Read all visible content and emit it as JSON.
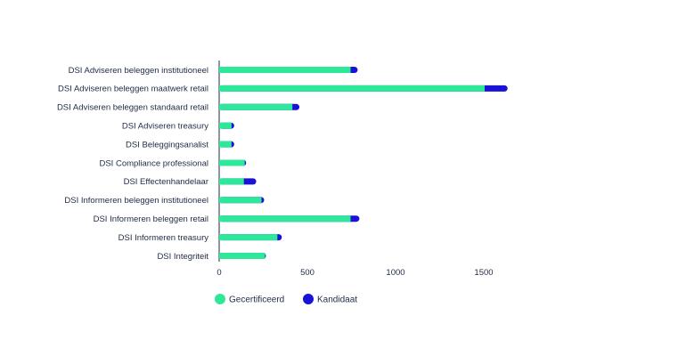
{
  "chart_data": {
    "type": "bar",
    "orientation": "horizontal",
    "stacked": true,
    "title": "",
    "xlabel": "",
    "ylabel": "",
    "categories": [
      "DSI Adviseren beleggen institutioneel",
      "DSI Adviseren beleggen maatwerk retail",
      "DSI Adviseren beleggen standaard retail",
      "DSI Adviseren treasury",
      "DSI Beleggingsanalist",
      "DSI Compliance professional",
      "DSI Effectenhandelaar",
      "DSI Informeren beleggen institutioneel",
      "DSI Informeren beleggen retail",
      "DSI Informeren treasury",
      "DSI Integriteit"
    ],
    "series": [
      {
        "name": "Gecertificeerd",
        "color": "#2ee89a",
        "values": [
          745,
          1505,
          415,
          70,
          70,
          145,
          140,
          240,
          745,
          330,
          260
        ]
      },
      {
        "name": "Kandidaat",
        "color": "#1a12d6",
        "values": [
          40,
          130,
          40,
          15,
          15,
          8,
          70,
          15,
          50,
          25,
          5
        ]
      }
    ],
    "xlim": [
      0,
      1650
    ],
    "xticks": [
      0,
      500,
      1000,
      1500
    ],
    "grid": false,
    "legend_position": "bottom"
  }
}
